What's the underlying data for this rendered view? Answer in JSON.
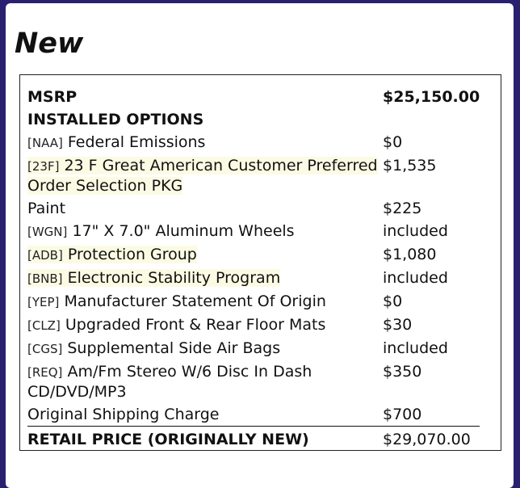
{
  "title": "New",
  "msrp": {
    "label": "MSRP",
    "value": "$25,150.00"
  },
  "options_header": "INSTALLED OPTIONS",
  "options": [
    {
      "code": "[NAA]",
      "name": "Federal Emissions",
      "price": "$0",
      "highlight": false
    },
    {
      "code": "[23F]",
      "name": "23 F Great American Customer Preferred Order Selection PKG",
      "price": "$1,535",
      "highlight": true
    },
    {
      "code": "",
      "name": "Paint",
      "price": "$225",
      "highlight": false
    },
    {
      "code": "[WGN]",
      "name": "17\" X 7.0\" Aluminum Wheels",
      "price": "included",
      "highlight": false
    },
    {
      "code": "[ADB]",
      "name": "Protection Group",
      "price": "$1,080",
      "highlight": true
    },
    {
      "code": "[BNB]",
      "name": "Electronic Stability Program",
      "price": "included",
      "highlight": true
    },
    {
      "code": "[YEP]",
      "name": "Manufacturer Statement Of Origin",
      "price": "$0",
      "highlight": false
    },
    {
      "code": "[CLZ]",
      "name": "Upgraded Front & Rear Floor Mats",
      "price": "$30",
      "highlight": false
    },
    {
      "code": "[CGS]",
      "name": "Supplemental Side Air Bags",
      "price": "included",
      "highlight": false
    },
    {
      "code": "[REQ]",
      "name": "Am/Fm Stereo W/6 Disc In Dash CD/DVD/MP3",
      "price": "$350",
      "highlight": false
    },
    {
      "code": "",
      "name": "Original Shipping Charge",
      "price": "$700",
      "highlight": false
    }
  ],
  "total": {
    "label": "RETAIL PRICE (ORIGINALLY NEW)",
    "value": "$29,070.00"
  },
  "colors": {
    "background": "#2a2070",
    "highlight": "#fbfbe4"
  }
}
